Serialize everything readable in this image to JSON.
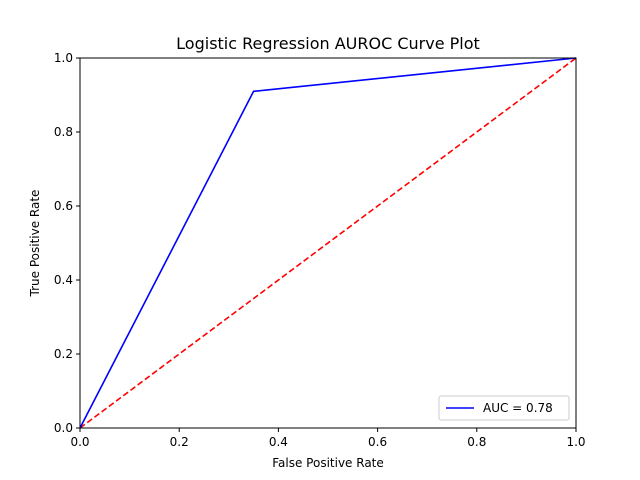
{
  "chart_data": {
    "type": "line",
    "title": "Logistic Regression AUROC Curve Plot",
    "xlabel": "False Positive Rate",
    "ylabel": "True Positive Rate",
    "xlim": [
      0,
      1
    ],
    "ylim": [
      0,
      1
    ],
    "xticks": [
      "0.0",
      "0.2",
      "0.4",
      "0.6",
      "0.8",
      "1.0"
    ],
    "yticks": [
      "0.0",
      "0.2",
      "0.4",
      "0.6",
      "0.8",
      "1.0"
    ],
    "grid": false,
    "legend_position": "lower-right",
    "series": [
      {
        "name": "AUC = 0.78",
        "color": "#0000ff",
        "style": "solid",
        "x": [
          0.0,
          0.35,
          1.0
        ],
        "y": [
          0.0,
          0.91,
          1.0
        ]
      },
      {
        "color": "#ff0000",
        "style": "dashed",
        "x": [
          0.0,
          1.0
        ],
        "y": [
          0.0,
          1.0
        ]
      }
    ]
  }
}
